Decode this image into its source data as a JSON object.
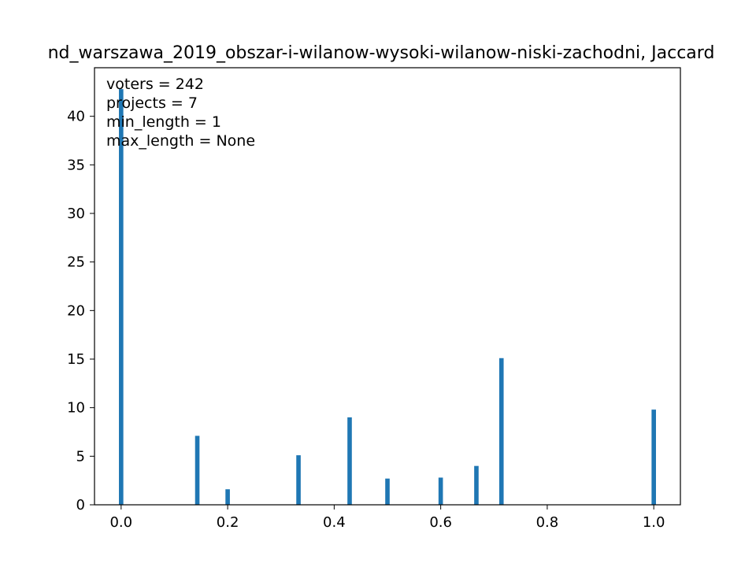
{
  "chart_data": {
    "type": "bar",
    "title": "nd_warszawa_2019_obszar-i-wilanow-wysoki-wilanow-niski-zachodni, Jaccard",
    "xlabel": "",
    "ylabel": "",
    "xlim": [
      -0.05,
      1.05
    ],
    "ylim": [
      0,
      45
    ],
    "x_ticks": [
      0.0,
      0.2,
      0.4,
      0.6,
      0.8,
      1.0
    ],
    "x_tick_labels": [
      "0.0",
      "0.2",
      "0.4",
      "0.6",
      "0.8",
      "1.0"
    ],
    "y_ticks": [
      0,
      5,
      10,
      15,
      20,
      25,
      30,
      35,
      40
    ],
    "y_tick_labels": [
      "0",
      "5",
      "10",
      "15",
      "20",
      "25",
      "30",
      "35",
      "40"
    ],
    "bar_width": 0.0083,
    "color": "#1f77b4",
    "grid": false,
    "annotations": [
      "voters = 242",
      "projects = 7",
      "min_length = 1",
      "max_length = None"
    ],
    "points": [
      {
        "x": 0.0,
        "value": 42.8
      },
      {
        "x": 0.143,
        "value": 7.1
      },
      {
        "x": 0.2,
        "value": 1.6
      },
      {
        "x": 0.333,
        "value": 5.1
      },
      {
        "x": 0.429,
        "value": 9.0
      },
      {
        "x": 0.5,
        "value": 2.7
      },
      {
        "x": 0.6,
        "value": 2.8
      },
      {
        "x": 0.667,
        "value": 4.0
      },
      {
        "x": 0.714,
        "value": 15.1
      },
      {
        "x": 1.0,
        "value": 9.8
      }
    ]
  }
}
